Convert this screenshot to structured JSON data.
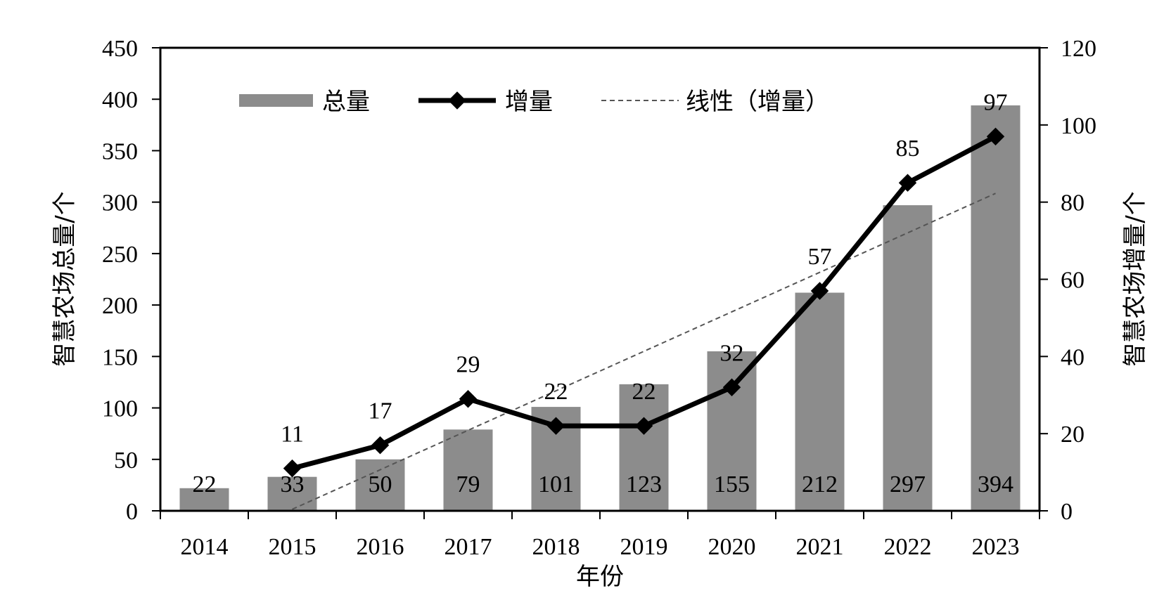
{
  "chart_data": {
    "type": "bar",
    "categories": [
      "2014",
      "2015",
      "2016",
      "2017",
      "2018",
      "2019",
      "2020",
      "2021",
      "2022",
      "2023"
    ],
    "series": [
      {
        "name": "总量",
        "type": "bar",
        "axis": "left",
        "values": [
          22,
          33,
          50,
          79,
          101,
          123,
          155,
          212,
          297,
          394
        ]
      },
      {
        "name": "增量",
        "type": "line",
        "axis": "right",
        "values": [
          null,
          11,
          17,
          29,
          22,
          22,
          32,
          57,
          85,
          97
        ]
      },
      {
        "name": "线性（增量）",
        "type": "trendline",
        "axis": "right",
        "from": "2015",
        "to": "2023"
      }
    ],
    "xlabel": "年份",
    "ylabel": "智慧农场总量/个",
    "y2label": "智慧农场增量/个",
    "ylim": [
      0,
      450
    ],
    "y2lim": [
      0,
      120
    ],
    "yticks": [
      "0",
      "50",
      "100",
      "150",
      "200",
      "250",
      "300",
      "350",
      "400",
      "450"
    ],
    "y2ticks": [
      "0",
      "20",
      "40",
      "60",
      "80",
      "100",
      "120"
    ],
    "grid": false,
    "legend_position": "top",
    "colors": {
      "bar": "#8c8c8c",
      "line": "#000000",
      "trend": "#555555"
    }
  }
}
